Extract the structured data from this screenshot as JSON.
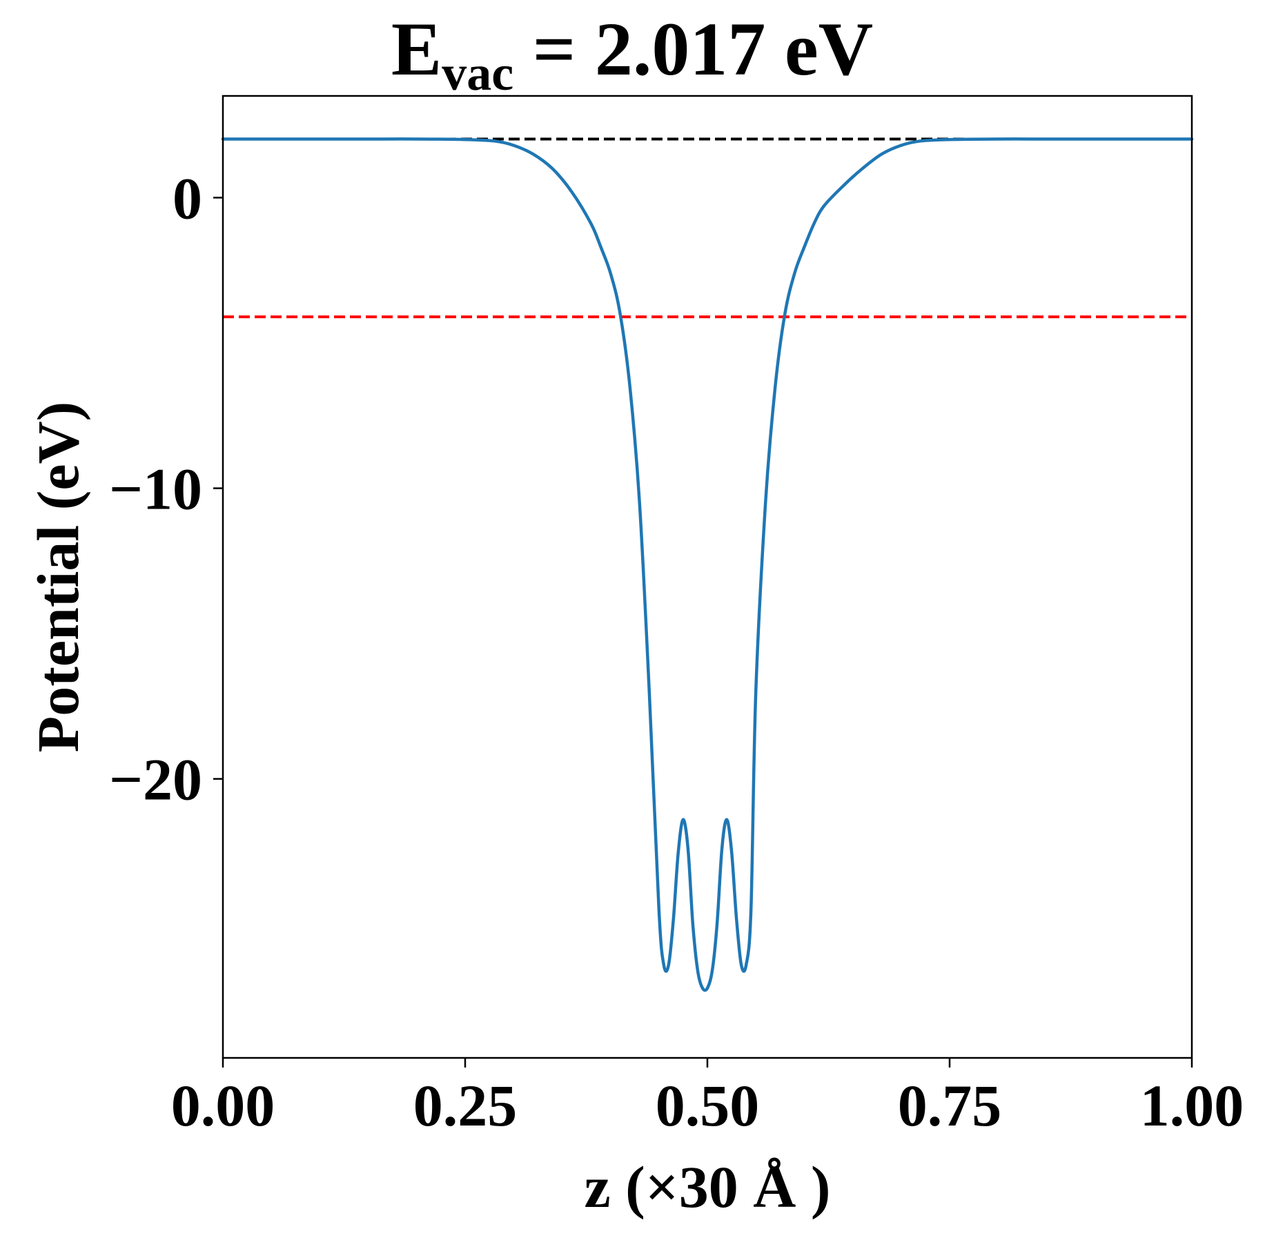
{
  "chart_data": {
    "type": "line",
    "title": {
      "main": "E",
      "subscript": "vac",
      "suffix": " = 2.017 eV"
    },
    "xlabel": "z (×30 Å )",
    "ylabel": "Potential (eV)",
    "xlim": [
      0.0,
      1.0
    ],
    "ylim": [
      -29.6,
      3.5
    ],
    "x_ticks": [
      {
        "value": 0.0,
        "label": "0.00"
      },
      {
        "value": 0.25,
        "label": "0.25"
      },
      {
        "value": 0.5,
        "label": "0.50"
      },
      {
        "value": 0.75,
        "label": "0.75"
      },
      {
        "value": 1.0,
        "label": "1.00"
      }
    ],
    "y_ticks": [
      {
        "value": 0,
        "label": "0"
      },
      {
        "value": -10,
        "label": "−10"
      },
      {
        "value": -20,
        "label": "−20"
      }
    ],
    "grid": false,
    "reference_lines": [
      {
        "y": 2.017,
        "style": "dashed",
        "color": "#000000"
      },
      {
        "y": -4.1,
        "style": "dashed",
        "color": "#ff0000"
      }
    ],
    "series": [
      {
        "color": "#1f77b4",
        "x": [
          0.0,
          0.05,
          0.1,
          0.15,
          0.2,
          0.25,
          0.28,
          0.3,
          0.32,
          0.34,
          0.36,
          0.38,
          0.39,
          0.4,
          0.41,
          0.42,
          0.43,
          0.44,
          0.45,
          0.455,
          0.46,
          0.465,
          0.47,
          0.475,
          0.48,
          0.485,
          0.49,
          0.495,
          0.5,
          0.505,
          0.51,
          0.515,
          0.52,
          0.525,
          0.53,
          0.535,
          0.54,
          0.545,
          0.55,
          0.56,
          0.57,
          0.58,
          0.59,
          0.6,
          0.61,
          0.62,
          0.64,
          0.66,
          0.68,
          0.7,
          0.72,
          0.75,
          0.8,
          0.85,
          0.9,
          0.95,
          1.0
        ],
        "y": [
          2.017,
          2.017,
          2.017,
          2.017,
          2.017,
          2.0,
          1.95,
          1.8,
          1.5,
          1.0,
          0.2,
          -0.9,
          -1.7,
          -2.6,
          -4.0,
          -6.5,
          -10.5,
          -17.0,
          -24.5,
          -26.4,
          -26.4,
          -24.8,
          -22.5,
          -21.4,
          -22.4,
          -25.0,
          -26.6,
          -27.2,
          -27.2,
          -26.6,
          -25.0,
          -22.4,
          -21.4,
          -22.5,
          -24.8,
          -26.4,
          -26.4,
          -24.5,
          -17.0,
          -10.5,
          -6.5,
          -4.0,
          -2.6,
          -1.7,
          -0.9,
          -0.3,
          0.4,
          1.0,
          1.5,
          1.8,
          1.95,
          2.0,
          2.017,
          2.017,
          2.017,
          2.017,
          2.017
        ]
      }
    ]
  }
}
